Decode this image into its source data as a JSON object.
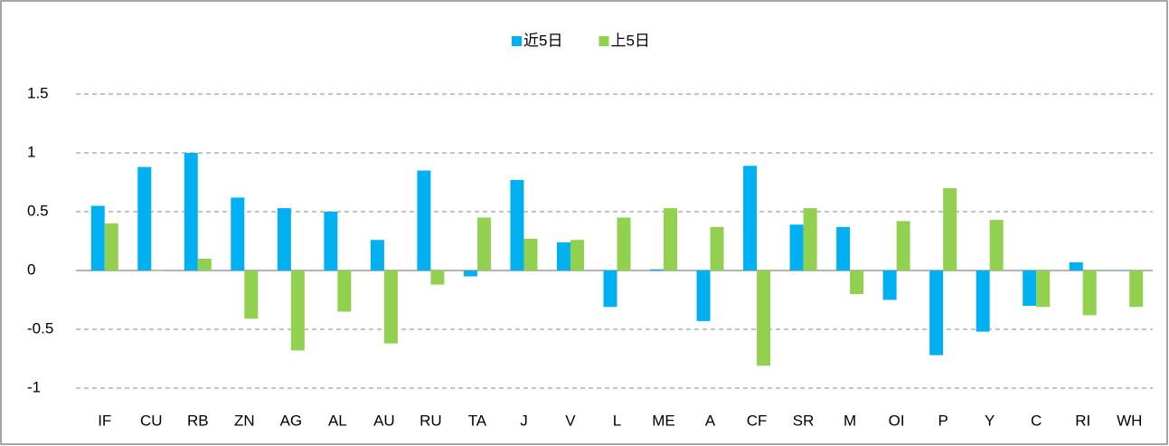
{
  "chart_data": {
    "type": "bar",
    "categories": [
      "IF",
      "CU",
      "RB",
      "ZN",
      "AG",
      "AL",
      "AU",
      "RU",
      "TA",
      "J",
      "V",
      "L",
      "ME",
      "A",
      "CF",
      "SR",
      "M",
      "OI",
      "P",
      "Y",
      "C",
      "RI",
      "WH"
    ],
    "series": [
      {
        "name": "近5日",
        "color": "#00b0f0",
        "values": [
          0.55,
          0.88,
          1.0,
          0.62,
          0.53,
          0.5,
          0.26,
          0.85,
          -0.05,
          0.77,
          0.24,
          -0.31,
          0.01,
          -0.43,
          0.89,
          0.39,
          0.37,
          -0.25,
          -0.72,
          -0.52,
          -0.3,
          0.07,
          0
        ]
      },
      {
        "name": "上5日",
        "color": "#92d050",
        "values": [
          0.4,
          0,
          0.1,
          -0.41,
          -0.68,
          -0.35,
          -0.62,
          -0.12,
          0.45,
          0.27,
          0.26,
          0.45,
          0.53,
          0.37,
          -0.81,
          0.53,
          -0.2,
          0.42,
          0.7,
          0.43,
          -0.31,
          -0.38,
          -0.31
        ]
      }
    ],
    "ylim": [
      -1,
      1.5
    ],
    "yticks": [
      -1,
      -0.5,
      0,
      0.5,
      1,
      1.5
    ],
    "grid": true,
    "legend": "top"
  }
}
